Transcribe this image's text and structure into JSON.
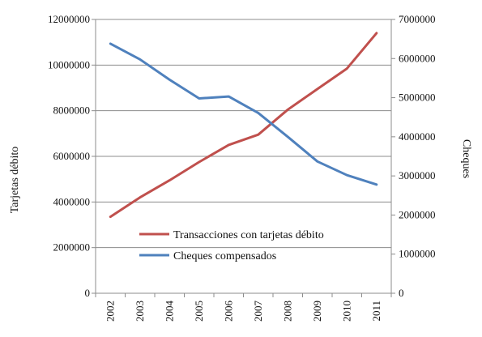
{
  "chart_data": {
    "type": "line",
    "categories": [
      "2002",
      "2003",
      "2004",
      "2005",
      "2006",
      "2007",
      "2008",
      "2009",
      "2010",
      "2011"
    ],
    "series": [
      {
        "name": "Transacciones con tarjetas débito",
        "axis": "left",
        "color": "#C0504D",
        "values": [
          3350000,
          4200000,
          4950000,
          5750000,
          6500000,
          6950000,
          8050000,
          8950000,
          9850000,
          11400000
        ]
      },
      {
        "name": "Cheques compensados",
        "axis": "right",
        "color": "#4F81BD",
        "values": [
          6380000,
          5980000,
          5460000,
          4980000,
          5030000,
          4610000,
          4000000,
          3370000,
          3020000,
          2780000
        ]
      }
    ],
    "y_left": {
      "label": "Tarjetas débito",
      "lim": [
        0,
        12000000
      ],
      "ticks": [
        "0",
        "2000000",
        "4000000",
        "6000000",
        "8000000",
        "10000000",
        "12000000"
      ]
    },
    "y_right": {
      "label": "Cheques",
      "lim": [
        0,
        7000000
      ],
      "ticks": [
        "0",
        "1000000",
        "2000000",
        "3000000",
        "4000000",
        "5000000",
        "6000000",
        "7000000"
      ]
    },
    "grid": "horizontal",
    "legend_position": "bottom-center"
  }
}
